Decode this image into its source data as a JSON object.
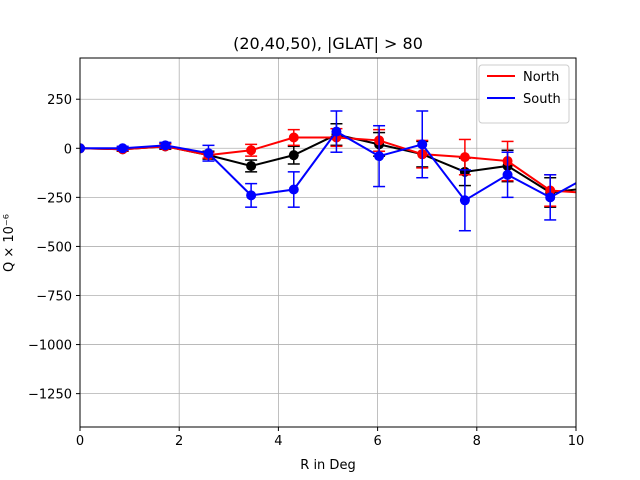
{
  "chart_data": {
    "type": "line",
    "title": "(20,40,50), |GLAT| > 80",
    "xlabel": "R in Deg",
    "ylabel": "Q × 10⁻⁶",
    "xlim": [
      0,
      10
    ],
    "ylim": [
      -1420,
      460
    ],
    "xticks": [
      0,
      2,
      4,
      6,
      8,
      10
    ],
    "yticks": [
      250,
      0,
      -250,
      -500,
      -750,
      -1000,
      -1250
    ],
    "grid": true,
    "legend_position": "top-right",
    "x": [
      0,
      0.86,
      1.72,
      2.59,
      3.45,
      4.31,
      5.17,
      6.03,
      6.9,
      7.76,
      8.62,
      9.48,
      10.34
    ],
    "series": [
      {
        "name": "",
        "color": "#000000",
        "values": [
          0,
          -5,
          10,
          -35,
          -90,
          -35,
          70,
          20,
          -30,
          -120,
          -90,
          -225,
          -200
        ],
        "errors": [
          0,
          10,
          15,
          20,
          30,
          45,
          55,
          60,
          65,
          70,
          80,
          75,
          70
        ],
        "in_legend": false
      },
      {
        "name": "North",
        "color": "#ff0000",
        "values": [
          0,
          -5,
          10,
          -35,
          -10,
          55,
          55,
          40,
          -30,
          -45,
          -65,
          -215,
          -230
        ],
        "errors": [
          0,
          8,
          12,
          15,
          30,
          40,
          45,
          55,
          70,
          90,
          100,
          80,
          70
        ],
        "in_legend": true
      },
      {
        "name": "South",
        "color": "#0000ff",
        "values": [
          0,
          0,
          15,
          -25,
          -240,
          -210,
          85,
          -40,
          20,
          -265,
          -135,
          -250,
          -130
        ],
        "errors": [
          0,
          10,
          15,
          40,
          60,
          90,
          105,
          155,
          170,
          155,
          115,
          115,
          90
        ],
        "in_legend": true
      }
    ]
  }
}
